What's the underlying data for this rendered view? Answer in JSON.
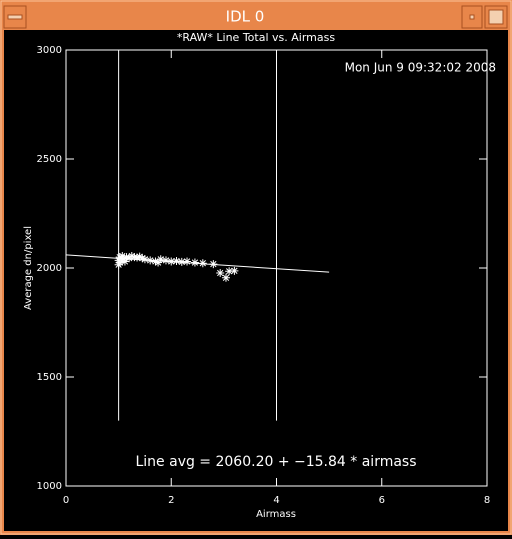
{
  "window": {
    "title": "IDL 0"
  },
  "chart_data": {
    "type": "scatter",
    "title": "*RAW* Line Total vs. Airmass",
    "x_label": "Airmass",
    "y_label": "Average dn/pixel",
    "annotations": [
      "Mon Jun  9 09:32:02 2008",
      "Line avg = 2060.20 + −15.84 * airmass"
    ],
    "xlim": [
      0,
      8
    ],
    "xticks": [
      0,
      2,
      4,
      6,
      8
    ],
    "ylim": [
      1000,
      3000
    ],
    "yticks": [
      1000,
      1500,
      2000,
      2500,
      3000
    ],
    "color": "#ffffff",
    "x": [
      1.0,
      1.0,
      1.02,
      1.03,
      1.05,
      1.07,
      1.1,
      1.12,
      1.15,
      1.2,
      1.25,
      1.3,
      1.35,
      1.4,
      1.45,
      1.5,
      1.6,
      1.7,
      1.75,
      1.8,
      1.9,
      2.0,
      2.1,
      2.2,
      2.3,
      2.45,
      2.6,
      2.8,
      2.93,
      3.04,
      3.1,
      3.2
    ],
    "values": [
      2015,
      2035,
      2050,
      2025,
      2045,
      2055,
      2040,
      2030,
      2050,
      2045,
      2055,
      2050,
      2048,
      2052,
      2045,
      2040,
      2035,
      2030,
      2025,
      2040,
      2035,
      2030,
      2032,
      2028,
      2030,
      2025,
      2022,
      2018,
      1977,
      1955,
      1985,
      1987
    ],
    "fit_line": {
      "x": [
        0,
        5
      ],
      "values": [
        2060.2,
        1981.0
      ]
    },
    "vlines": [
      {
        "x": 1,
        "y": [
          1300,
          3000
        ]
      },
      {
        "x": 4,
        "y": [
          1300,
          3000
        ]
      }
    ]
  }
}
